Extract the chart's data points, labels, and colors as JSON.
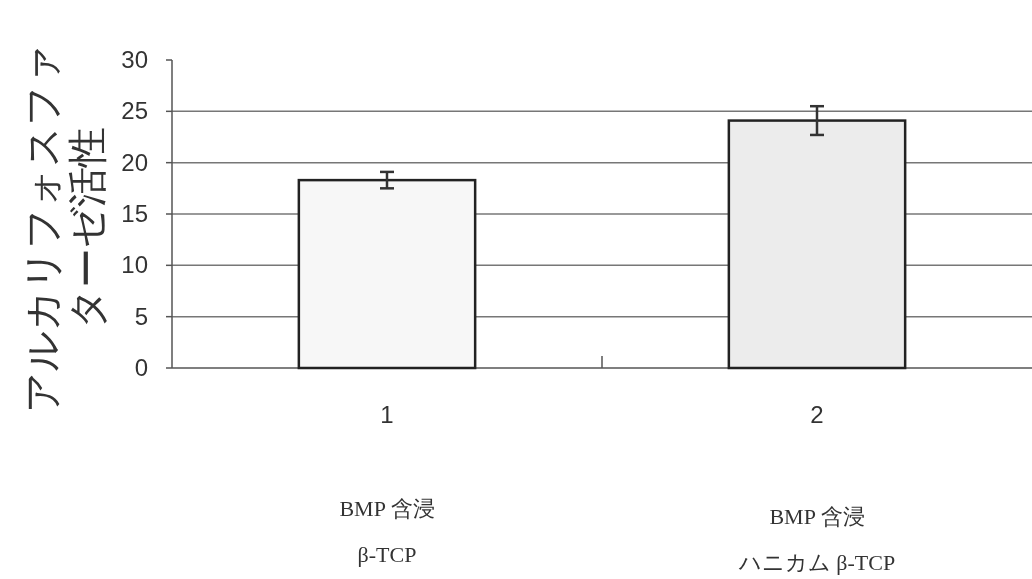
{
  "chart_data": {
    "type": "bar",
    "ylabel": "アルカリフォスファターゼ活性",
    "categories": [
      "1",
      "2"
    ],
    "values": [
      18.3,
      24.1
    ],
    "errors": [
      0.8,
      1.4
    ],
    "colors": [
      "#f7f7f7",
      "#ececec"
    ],
    "ylim": [
      0,
      30
    ],
    "yticks": [
      0,
      5,
      10,
      15,
      20,
      25,
      30
    ],
    "grid": "y",
    "annotations": [
      "BMP 含浸",
      "β-TCP",
      "BMP 含浸",
      "ハニカム β-TCP"
    ]
  }
}
